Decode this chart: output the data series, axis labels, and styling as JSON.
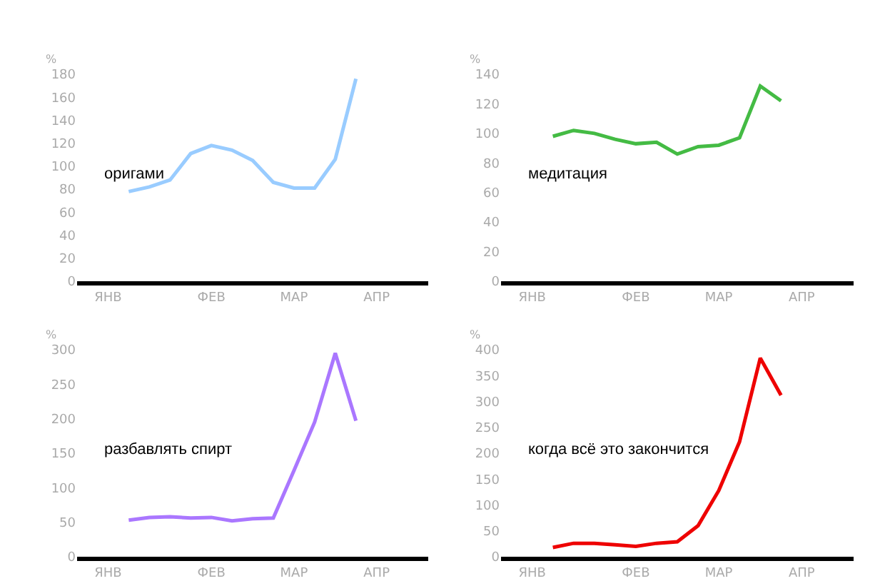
{
  "chart_data": [
    {
      "type": "line",
      "ylabel": "%",
      "categories": [
        null,
        "ЯНВ",
        null,
        null,
        null,
        null,
        "ФЕВ",
        null,
        null,
        null,
        "МАР",
        null,
        null,
        null,
        "АПР",
        null,
        null
      ],
      "ylim": [
        0,
        180
      ],
      "yticks": [
        0,
        20,
        40,
        60,
        80,
        100,
        120,
        140,
        160,
        180
      ],
      "legend": false,
      "marker": "none",
      "line_style": "solid",
      "series": [
        {
          "name": "оригами",
          "color": "#99ccff",
          "values": [
            null,
            null,
            78,
            82,
            88,
            111,
            118,
            114,
            105,
            86,
            81,
            81,
            106,
            176,
            null,
            null,
            null
          ]
        }
      ]
    },
    {
      "type": "line",
      "ylabel": "%",
      "categories": [
        null,
        "ЯНВ",
        null,
        null,
        null,
        null,
        "ФЕВ",
        null,
        null,
        null,
        "МАР",
        null,
        null,
        null,
        "АПР",
        null,
        null
      ],
      "ylim": [
        0,
        140
      ],
      "yticks": [
        0,
        20,
        40,
        60,
        80,
        100,
        120,
        140
      ],
      "legend": false,
      "marker": "none",
      "line_style": "solid",
      "series": [
        {
          "name": "медитация",
          "color": "#44bb44",
          "values": [
            null,
            null,
            98,
            102,
            100,
            96,
            93,
            94,
            86,
            91,
            92,
            97,
            132,
            122,
            null,
            null,
            null
          ]
        }
      ]
    },
    {
      "type": "line",
      "ylabel": "%",
      "categories": [
        null,
        "ЯНВ",
        null,
        null,
        null,
        null,
        "ФЕВ",
        null,
        null,
        null,
        "МАР",
        null,
        null,
        null,
        "АПР",
        null,
        null
      ],
      "ylim": [
        0,
        300
      ],
      "yticks": [
        0,
        50,
        100,
        150,
        200,
        250,
        300
      ],
      "legend": false,
      "marker": "none",
      "line_style": "solid",
      "series": [
        {
          "name": "разбавлять спирт",
          "color": "#aa77ff",
          "values": [
            null,
            null,
            53,
            57,
            58,
            56,
            57,
            52,
            55,
            56,
            125,
            195,
            295,
            197,
            null,
            null,
            null
          ]
        }
      ]
    },
    {
      "type": "line",
      "ylabel": "%",
      "categories": [
        null,
        "ЯНВ",
        null,
        null,
        null,
        null,
        "ФЕВ",
        null,
        null,
        null,
        "МАР",
        null,
        null,
        null,
        "АПР",
        null,
        null
      ],
      "ylim": [
        0,
        400
      ],
      "yticks": [
        0,
        50,
        100,
        150,
        200,
        250,
        300,
        350,
        400
      ],
      "legend": false,
      "marker": "none",
      "line_style": "solid",
      "series": [
        {
          "name": "когда всё это закончится",
          "color": "#ee0000",
          "values": [
            null,
            null,
            18,
            26,
            26,
            23,
            20,
            26,
            29,
            60,
            128,
            222,
            384,
            312,
            null,
            null,
            null
          ]
        }
      ]
    }
  ]
}
